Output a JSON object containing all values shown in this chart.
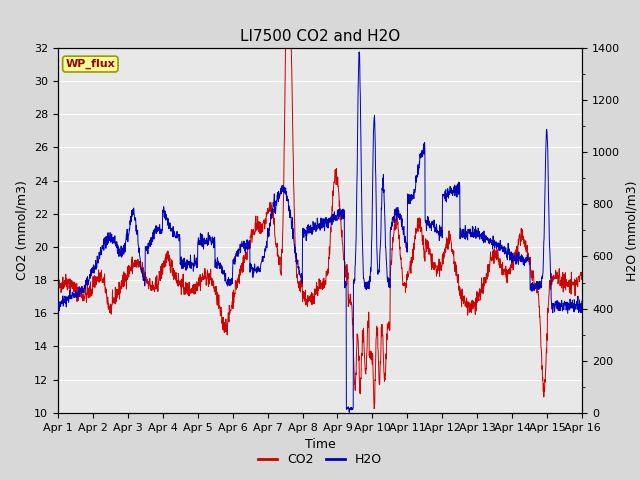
{
  "title": "LI7500 CO2 and H2O",
  "xlabel": "Time",
  "ylabel_left": "CO2 (mmol/m3)",
  "ylabel_right": "H2O (mmol/m3)",
  "ylim_left": [
    10,
    32
  ],
  "ylim_right": [
    0,
    1400
  ],
  "yticks_left": [
    10,
    12,
    14,
    16,
    18,
    20,
    22,
    24,
    26,
    28,
    30,
    32
  ],
  "yticks_right": [
    0,
    200,
    400,
    600,
    800,
    1000,
    1200,
    1400
  ],
  "xtick_labels": [
    "Apr 1",
    "Apr 2",
    "Apr 3",
    "Apr 4",
    "Apr 5",
    "Apr 6",
    "Apr 7",
    "Apr 8",
    "Apr 9",
    "Apr 10",
    "Apr 11",
    "Apr 12",
    "Apr 13",
    "Apr 14",
    "Apr 15",
    "Apr 16"
  ],
  "co2_color": "#cc0000",
  "h2o_color": "#0000bb",
  "bg_color": "#d8d8d8",
  "plot_bg_color": "#e8e8e8",
  "grid_color": "#ffffff",
  "annotation_text": "WP_flux",
  "annotation_bg": "#ffff99",
  "annotation_border": "#999900",
  "title_fontsize": 11,
  "axis_label_fontsize": 9,
  "tick_fontsize": 8,
  "legend_fontsize": 9
}
